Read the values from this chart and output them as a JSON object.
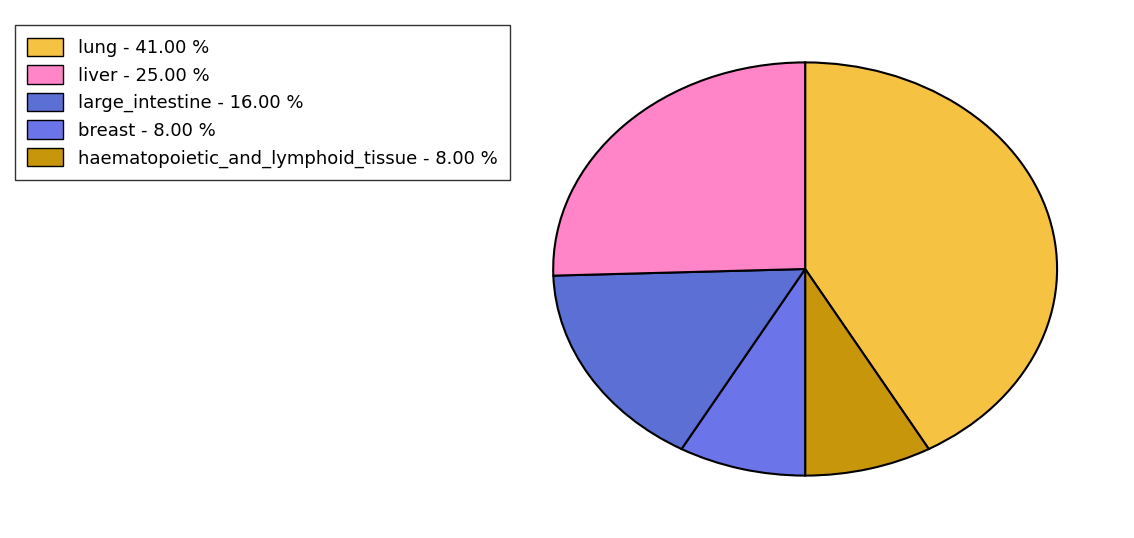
{
  "labels": [
    "lung",
    "haematopoietic_and_lymphoid_tissue",
    "breast",
    "large_intestine",
    "liver"
  ],
  "values": [
    41,
    8,
    8,
    16,
    25
  ],
  "colors": [
    "#F5C242",
    "#C8960A",
    "#6B74E8",
    "#5B6FD4",
    "#FF85C8"
  ],
  "legend_labels": [
    "lung - 41.00 %",
    "liver - 25.00 %",
    "large_intestine - 16.00 %",
    "breast - 8.00 %",
    "haematopoietic_and_lymphoid_tissue - 8.00 %"
  ],
  "legend_colors": [
    "#F5C242",
    "#FF85C8",
    "#5B6FD4",
    "#6B74E8",
    "#C8960A"
  ],
  "startangle": 90,
  "figsize": [
    11.34,
    5.38
  ],
  "dpi": 100
}
